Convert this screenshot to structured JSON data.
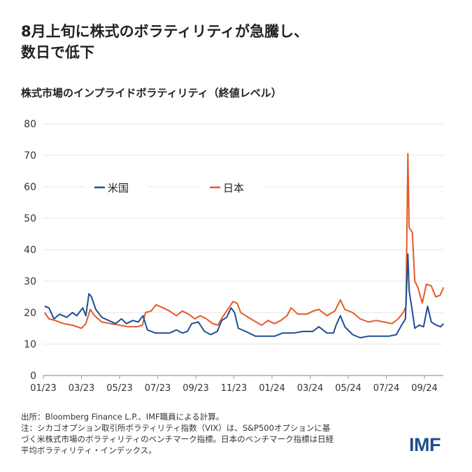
{
  "title_lines": [
    "8月上旬に株式のボラティリティが急騰し、",
    "数日で低下"
  ],
  "chart_data": {
    "type": "line",
    "title": "株式市場のインプライドボラティリティ（終値レベル）",
    "xlabel": "",
    "ylabel": "",
    "ylim": [
      0,
      80
    ],
    "yticks": [
      0,
      10,
      20,
      30,
      40,
      50,
      60,
      70,
      80
    ],
    "xticks": [
      "01/23",
      "03/23",
      "05/23",
      "07/23",
      "09/23",
      "11/23",
      "01/24",
      "03/24",
      "05/24",
      "07/24",
      "09/24"
    ],
    "grid": true,
    "legend_placement": "top-center",
    "series": [
      {
        "name": "米国",
        "color": "#1f4e96",
        "points": [
          [
            "2023-01-03",
            22
          ],
          [
            "2023-01-10",
            21.5
          ],
          [
            "2023-01-18",
            18
          ],
          [
            "2023-01-27",
            19.5
          ],
          [
            "2023-02-08",
            18.5
          ],
          [
            "2023-02-17",
            20
          ],
          [
            "2023-02-24",
            19
          ],
          [
            "2023-03-03",
            21.5
          ],
          [
            "2023-03-08",
            19
          ],
          [
            "2023-03-13",
            26
          ],
          [
            "2023-03-17",
            25
          ],
          [
            "2023-03-24",
            21
          ],
          [
            "2023-04-03",
            18.5
          ],
          [
            "2023-04-14",
            17.5
          ],
          [
            "2023-04-25",
            16.5
          ],
          [
            "2023-05-04",
            18
          ],
          [
            "2023-05-12",
            16.5
          ],
          [
            "2023-05-22",
            17.5
          ],
          [
            "2023-05-31",
            17
          ],
          [
            "2023-06-08",
            19
          ],
          [
            "2023-06-15",
            14.5
          ],
          [
            "2023-06-28",
            13.5
          ],
          [
            "2023-07-10",
            13.5
          ],
          [
            "2023-07-20",
            13.5
          ],
          [
            "2023-07-31",
            14.5
          ],
          [
            "2023-08-10",
            13.5
          ],
          [
            "2023-08-18",
            14
          ],
          [
            "2023-08-25",
            16.5
          ],
          [
            "2023-09-05",
            17
          ],
          [
            "2023-09-15",
            14
          ],
          [
            "2023-09-25",
            13
          ],
          [
            "2023-10-05",
            14
          ],
          [
            "2023-10-12",
            17.5
          ],
          [
            "2023-10-20",
            18.5
          ],
          [
            "2023-10-27",
            21.5
          ],
          [
            "2023-11-02",
            20
          ],
          [
            "2023-11-08",
            15
          ],
          [
            "2023-11-20",
            14
          ],
          [
            "2023-12-05",
            12.5
          ],
          [
            "2023-12-20",
            12.5
          ],
          [
            "2024-01-05",
            12.5
          ],
          [
            "2024-01-18",
            13.5
          ],
          [
            "2024-02-05",
            13.5
          ],
          [
            "2024-02-20",
            14
          ],
          [
            "2024-03-05",
            14
          ],
          [
            "2024-03-15",
            15.5
          ],
          [
            "2024-03-28",
            13.5
          ],
          [
            "2024-04-08",
            13.5
          ],
          [
            "2024-04-12",
            16
          ],
          [
            "2024-04-19",
            19
          ],
          [
            "2024-04-26",
            15.5
          ],
          [
            "2024-05-08",
            13
          ],
          [
            "2024-05-20",
            12
          ],
          [
            "2024-06-03",
            12.5
          ],
          [
            "2024-06-20",
            12.5
          ],
          [
            "2024-07-05",
            12.5
          ],
          [
            "2024-07-17",
            13
          ],
          [
            "2024-07-24",
            15.5
          ],
          [
            "2024-08-01",
            18
          ],
          [
            "2024-08-05",
            38.6
          ],
          [
            "2024-08-07",
            27
          ],
          [
            "2024-08-12",
            20.5
          ],
          [
            "2024-08-16",
            15
          ],
          [
            "2024-08-23",
            16
          ],
          [
            "2024-08-30",
            15.5
          ],
          [
            "2024-09-06",
            22
          ],
          [
            "2024-09-12",
            17
          ],
          [
            "2024-09-20",
            16
          ],
          [
            "2024-09-27",
            15.5
          ],
          [
            "2024-10-01",
            16.5
          ]
        ]
      },
      {
        "name": "日本",
        "color": "#e45a25",
        "points": [
          [
            "2023-01-03",
            20
          ],
          [
            "2023-01-10",
            18
          ],
          [
            "2023-01-20",
            17.5
          ],
          [
            "2023-02-03",
            16.5
          ],
          [
            "2023-02-17",
            16
          ],
          [
            "2023-03-01",
            15
          ],
          [
            "2023-03-08",
            16.5
          ],
          [
            "2023-03-15",
            21
          ],
          [
            "2023-03-22",
            19
          ],
          [
            "2023-04-03",
            17
          ],
          [
            "2023-04-17",
            16.5
          ],
          [
            "2023-05-01",
            16
          ],
          [
            "2023-05-15",
            15.5
          ],
          [
            "2023-05-29",
            15.5
          ],
          [
            "2023-06-07",
            16
          ],
          [
            "2023-06-12",
            20
          ],
          [
            "2023-06-21",
            20.5
          ],
          [
            "2023-06-29",
            22.5
          ],
          [
            "2023-07-10",
            21.5
          ],
          [
            "2023-07-20",
            20.5
          ],
          [
            "2023-07-31",
            19
          ],
          [
            "2023-08-10",
            20.5
          ],
          [
            "2023-08-20",
            19.5
          ],
          [
            "2023-08-30",
            18
          ],
          [
            "2023-09-08",
            19
          ],
          [
            "2023-09-18",
            18
          ],
          [
            "2023-09-28",
            16.5
          ],
          [
            "2023-10-06",
            16
          ],
          [
            "2023-10-13",
            18.5
          ],
          [
            "2023-10-20",
            20.5
          ],
          [
            "2023-10-30",
            23.5
          ],
          [
            "2023-11-06",
            23
          ],
          [
            "2023-11-12",
            20
          ],
          [
            "2023-11-24",
            18.5
          ],
          [
            "2023-12-06",
            17
          ],
          [
            "2023-12-15",
            16
          ],
          [
            "2023-12-25",
            17.5
          ],
          [
            "2024-01-05",
            16.5
          ],
          [
            "2024-01-15",
            17.5
          ],
          [
            "2024-01-25",
            19
          ],
          [
            "2024-02-01",
            21.5
          ],
          [
            "2024-02-12",
            19.5
          ],
          [
            "2024-02-26",
            19.5
          ],
          [
            "2024-03-06",
            20.5
          ],
          [
            "2024-03-15",
            21
          ],
          [
            "2024-03-28",
            19
          ],
          [
            "2024-04-10",
            20.5
          ],
          [
            "2024-04-19",
            24
          ],
          [
            "2024-04-26",
            21
          ],
          [
            "2024-05-08",
            20
          ],
          [
            "2024-05-20",
            18
          ],
          [
            "2024-06-03",
            17
          ],
          [
            "2024-06-15",
            17.5
          ],
          [
            "2024-06-28",
            17
          ],
          [
            "2024-07-10",
            16.5
          ],
          [
            "2024-07-20",
            18
          ],
          [
            "2024-07-28",
            20
          ],
          [
            "2024-08-02",
            22
          ],
          [
            "2024-08-05",
            70.5
          ],
          [
            "2024-08-07",
            47
          ],
          [
            "2024-08-12",
            45.5
          ],
          [
            "2024-08-16",
            30
          ],
          [
            "2024-08-21",
            28
          ],
          [
            "2024-08-28",
            23
          ],
          [
            "2024-09-04",
            29
          ],
          [
            "2024-09-12",
            28.5
          ],
          [
            "2024-09-19",
            25
          ],
          [
            "2024-09-26",
            25.5
          ],
          [
            "2024-10-01",
            28
          ]
        ]
      }
    ]
  },
  "notes": [
    "出所：Bloomberg Finance L.P.、IMF職員による計算。",
    "注：シカゴオプション取引所ボラティリティ指数（VIX）は、S&P500オプションに基",
    "づく米株式市場のボラティリティのベンチマーク指標。日本のベンチマーク指標は日経",
    "平均ボラティリティ・インデックス。"
  ],
  "logo_text": "IMF"
}
